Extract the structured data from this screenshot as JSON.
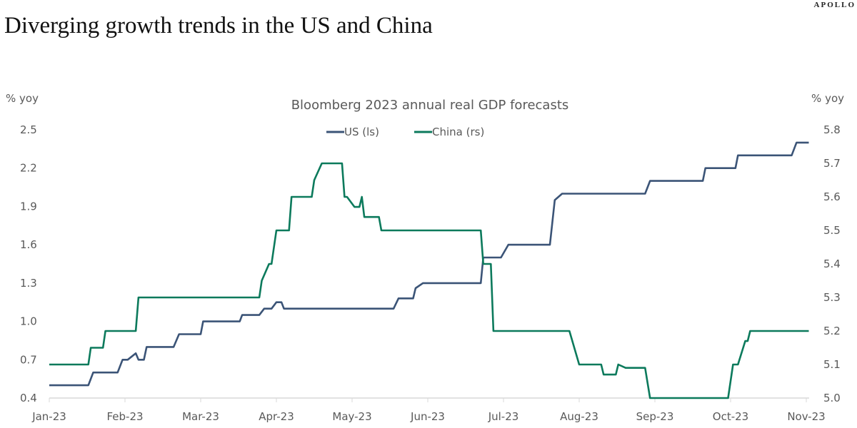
{
  "header": {
    "title": "Diverging growth trends in the US and China",
    "logo": "APOLLO"
  },
  "chart_data": {
    "type": "line",
    "title": "Bloomberg 2023 annual real GDP forecasts",
    "ylabel_left": "% yoy",
    "ylabel_right": "% yoy",
    "legend_position": "top-center",
    "grid": false,
    "x_ticks": [
      "Jan-23",
      "Feb-23",
      "Mar-23",
      "Apr-23",
      "May-23",
      "Jun-23",
      "Jul-23",
      "Aug-23",
      "Sep-23",
      "Oct-23",
      "Nov-23"
    ],
    "y_left": {
      "range": [
        0.4,
        2.5
      ],
      "ticks": [
        "0.4",
        "0.7",
        "1.0",
        "1.3",
        "1.6",
        "1.9",
        "2.2",
        "2.5"
      ]
    },
    "y_right": {
      "range": [
        5.0,
        5.8
      ],
      "ticks": [
        "5.0",
        "5.1",
        "5.2",
        "5.3",
        "5.4",
        "5.5",
        "5.6",
        "5.7",
        "5.8"
      ]
    },
    "series": [
      {
        "name": "US (ls)",
        "axis": "left",
        "color": "#3b5477",
        "points": [
          [
            "2023-01-01",
            0.5
          ],
          [
            "2023-01-17",
            0.5
          ],
          [
            "2023-01-19",
            0.6
          ],
          [
            "2023-01-29",
            0.6
          ],
          [
            "2023-01-31",
            0.7
          ],
          [
            "2023-02-02",
            0.7
          ],
          [
            "2023-02-05",
            0.75
          ],
          [
            "2023-02-06",
            0.7
          ],
          [
            "2023-02-08",
            0.7
          ],
          [
            "2023-02-09",
            0.8
          ],
          [
            "2023-02-19",
            0.8
          ],
          [
            "2023-02-21",
            0.9
          ],
          [
            "2023-03-01",
            0.9
          ],
          [
            "2023-03-02",
            1.0
          ],
          [
            "2023-03-17",
            1.0
          ],
          [
            "2023-03-18",
            1.05
          ],
          [
            "2023-03-25",
            1.05
          ],
          [
            "2023-03-27",
            1.1
          ],
          [
            "2023-03-30",
            1.1
          ],
          [
            "2023-04-01",
            1.15
          ],
          [
            "2023-04-03",
            1.15
          ],
          [
            "2023-04-04",
            1.1
          ],
          [
            "2023-05-18",
            1.1
          ],
          [
            "2023-05-20",
            1.18
          ],
          [
            "2023-05-26",
            1.18
          ],
          [
            "2023-05-27",
            1.26
          ],
          [
            "2023-05-30",
            1.3
          ],
          [
            "2023-06-22",
            1.3
          ],
          [
            "2023-06-23",
            1.5
          ],
          [
            "2023-06-30",
            1.5
          ],
          [
            "2023-07-03",
            1.6
          ],
          [
            "2023-07-20",
            1.6
          ],
          [
            "2023-07-22",
            1.95
          ],
          [
            "2023-07-25",
            2.0
          ],
          [
            "2023-08-28",
            2.0
          ],
          [
            "2023-08-30",
            2.1
          ],
          [
            "2023-09-20",
            2.1
          ],
          [
            "2023-09-21",
            2.2
          ],
          [
            "2023-10-03",
            2.2
          ],
          [
            "2023-10-04",
            2.3
          ],
          [
            "2023-10-26",
            2.3
          ],
          [
            "2023-10-28",
            2.4
          ],
          [
            "2023-11-02",
            2.4
          ]
        ]
      },
      {
        "name": "China (rs)",
        "axis": "right",
        "color": "#0c7a5c",
        "points": [
          [
            "2023-01-01",
            5.1
          ],
          [
            "2023-01-17",
            5.1
          ],
          [
            "2023-01-18",
            5.15
          ],
          [
            "2023-01-23",
            5.15
          ],
          [
            "2023-01-24",
            5.2
          ],
          [
            "2023-02-05",
            5.2
          ],
          [
            "2023-02-06",
            5.3
          ],
          [
            "2023-03-25",
            5.3
          ],
          [
            "2023-03-26",
            5.35
          ],
          [
            "2023-03-29",
            5.4
          ],
          [
            "2023-03-30",
            5.4
          ],
          [
            "2023-04-01",
            5.5
          ],
          [
            "2023-04-06",
            5.5
          ],
          [
            "2023-04-07",
            5.6
          ],
          [
            "2023-04-15",
            5.6
          ],
          [
            "2023-04-16",
            5.65
          ],
          [
            "2023-04-19",
            5.7
          ],
          [
            "2023-04-27",
            5.7
          ],
          [
            "2023-04-28",
            5.6
          ],
          [
            "2023-04-29",
            5.6
          ],
          [
            "2023-05-02",
            5.57
          ],
          [
            "2023-05-04",
            5.57
          ],
          [
            "2023-05-05",
            5.6
          ],
          [
            "2023-05-06",
            5.54
          ],
          [
            "2023-05-12",
            5.54
          ],
          [
            "2023-05-13",
            5.5
          ],
          [
            "2023-06-22",
            5.5
          ],
          [
            "2023-06-23",
            5.4
          ],
          [
            "2023-06-26",
            5.4
          ],
          [
            "2023-06-27",
            5.2
          ],
          [
            "2023-07-28",
            5.2
          ],
          [
            "2023-08-01",
            5.1
          ],
          [
            "2023-08-10",
            5.1
          ],
          [
            "2023-08-11",
            5.07
          ],
          [
            "2023-08-16",
            5.07
          ],
          [
            "2023-08-17",
            5.1
          ],
          [
            "2023-08-20",
            5.09
          ],
          [
            "2023-08-28",
            5.09
          ],
          [
            "2023-08-30",
            5.0
          ],
          [
            "2023-09-30",
            5.0
          ],
          [
            "2023-10-02",
            5.1
          ],
          [
            "2023-10-04",
            5.1
          ],
          [
            "2023-10-07",
            5.17
          ],
          [
            "2023-10-08",
            5.17
          ],
          [
            "2023-10-09",
            5.2
          ],
          [
            "2023-11-02",
            5.2
          ]
        ]
      }
    ]
  }
}
